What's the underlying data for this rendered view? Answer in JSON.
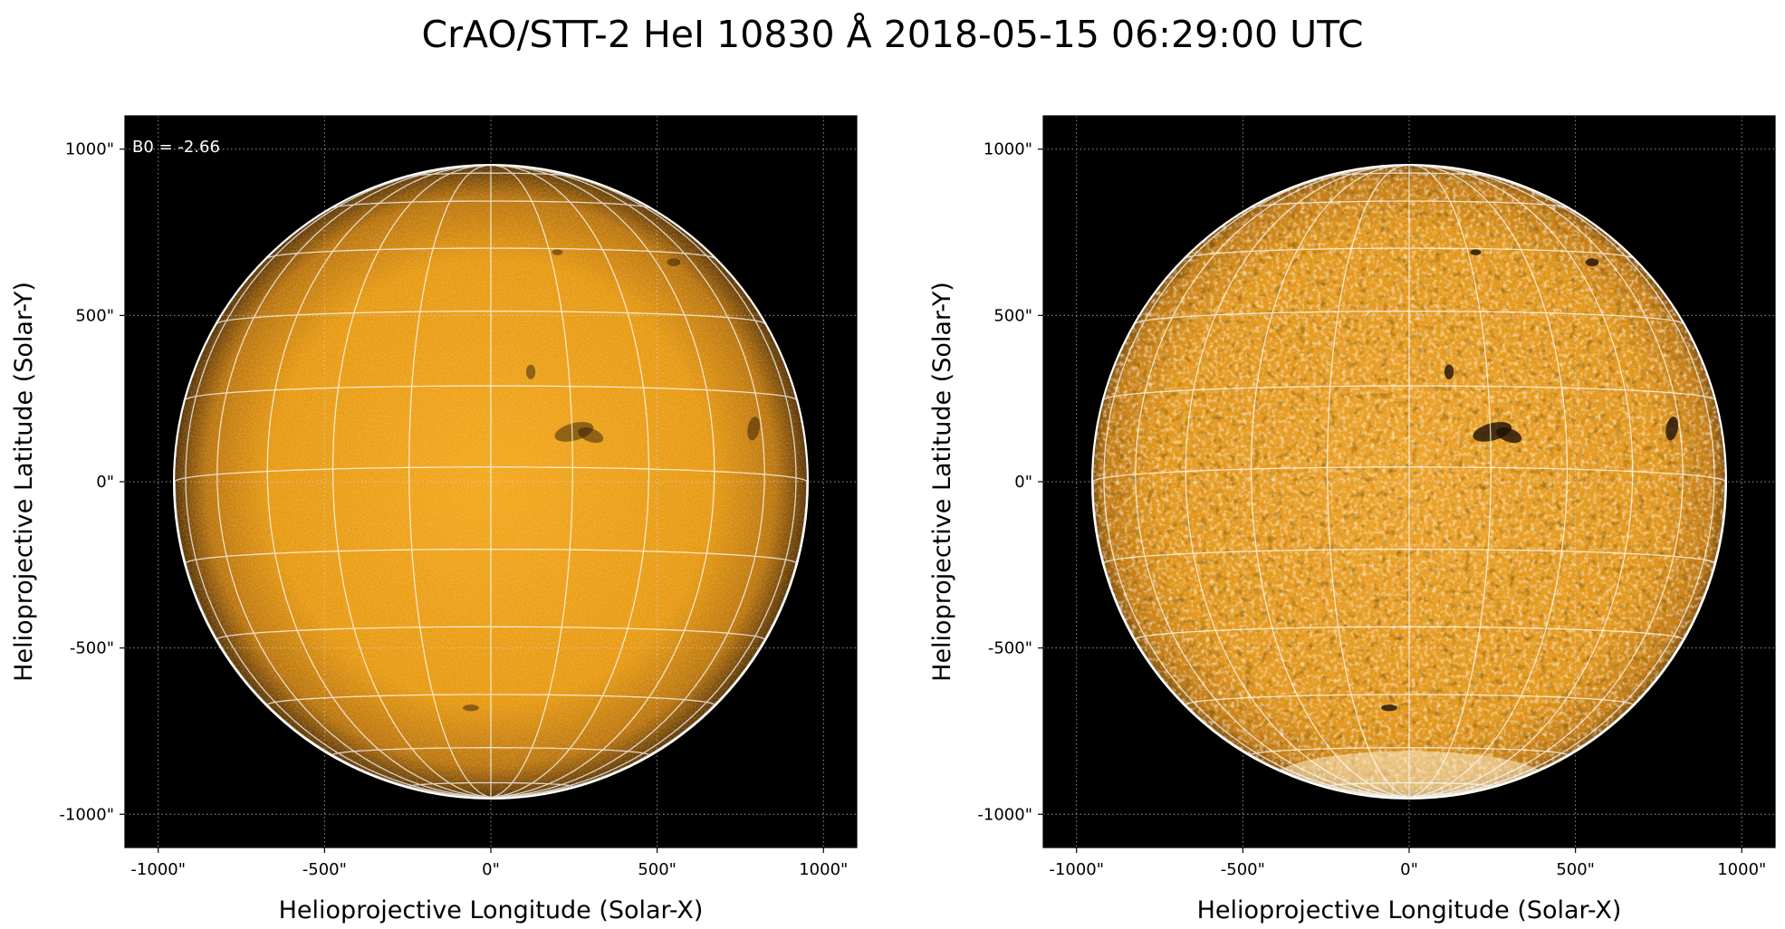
{
  "figure": {
    "title": "CrAO/STT-2 HeI 10830 Å 2018-05-15 06:29:00 UTC"
  },
  "colors": {
    "background": "#000000",
    "disk_center": "#f0a41c",
    "disk_limb": "#5a3608",
    "grid_lines": "#ffffff",
    "limb_circle": "#ffffff",
    "axes_grid": "#d8d8d8"
  },
  "panels": [
    {
      "id": "left",
      "annotation": "B0 = -2.66",
      "xlabel": "Helioprojective Longitude (Solar-X)",
      "ylabel": "Helioprojective Latitude (Solar-Y)",
      "xticks": [
        "-1000\"",
        "-500\"",
        "0\"",
        "500\"",
        "1000\""
      ],
      "yticks": [
        "1000\"",
        "500\"",
        "0\"",
        "-500\"",
        "-1000\""
      ],
      "processing": "original"
    },
    {
      "id": "right",
      "annotation": "",
      "xlabel": "Helioprojective Longitude (Solar-X)",
      "ylabel": "Helioprojective Latitude (Solar-Y)",
      "xticks": [
        "-1000\"",
        "-500\"",
        "0\"",
        "500\"",
        "1000\""
      ],
      "yticks": [
        "1000\"",
        "500\"",
        "0\"",
        "-500\"",
        "-1000\""
      ],
      "processing": "contrast-enhanced"
    }
  ],
  "axis_ticks_arcsec": [
    -1000,
    -500,
    0,
    500,
    1000
  ],
  "axis_range_arcsec": [
    -1100,
    1100
  ],
  "solar_disk": {
    "radius_arcsec": 950,
    "b0_deg": -2.66,
    "grid_spacing_deg": 15
  }
}
